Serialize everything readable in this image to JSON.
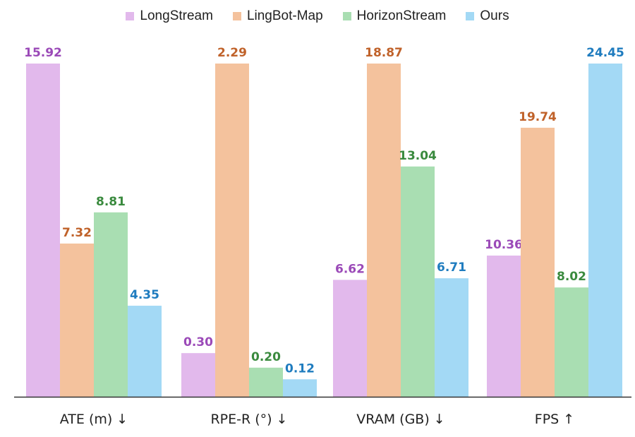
{
  "chart_data": {
    "type": "bar",
    "categories": [
      "ATE (m) ↓",
      "RPE-R (°) ↓",
      "VRAM (GB) ↓",
      "FPS ↑"
    ],
    "series": [
      {
        "name": "LongStream",
        "color": "#e2b9ec",
        "label_color": "#9b4ab8",
        "values": [
          15.92,
          0.3,
          6.62,
          10.36
        ],
        "labels": [
          "15.92",
          "0.30",
          "6.62",
          "10.36"
        ]
      },
      {
        "name": "LingBot-Map",
        "color": "#f4c29d",
        "label_color": "#c0622a",
        "values": [
          7.32,
          2.29,
          18.87,
          19.74
        ],
        "labels": [
          "7.32",
          "2.29",
          "18.87",
          "19.74"
        ]
      },
      {
        "name": "HorizonStream",
        "color": "#a9deb2",
        "label_color": "#3a8a3e",
        "values": [
          8.81,
          0.2,
          13.04,
          8.02
        ],
        "labels": [
          "8.81",
          "0.20",
          "13.04",
          "8.02"
        ]
      },
      {
        "name": "Ours",
        "color": "#a3d9f5",
        "label_color": "#1f7cbf",
        "values": [
          4.35,
          0.12,
          6.71,
          24.45
        ],
        "labels": [
          "4.35",
          "0.12",
          "6.71",
          "24.45"
        ]
      }
    ],
    "per_category_ymax": [
      15.92,
      2.29,
      18.87,
      24.45
    ],
    "legend_position": "top"
  }
}
